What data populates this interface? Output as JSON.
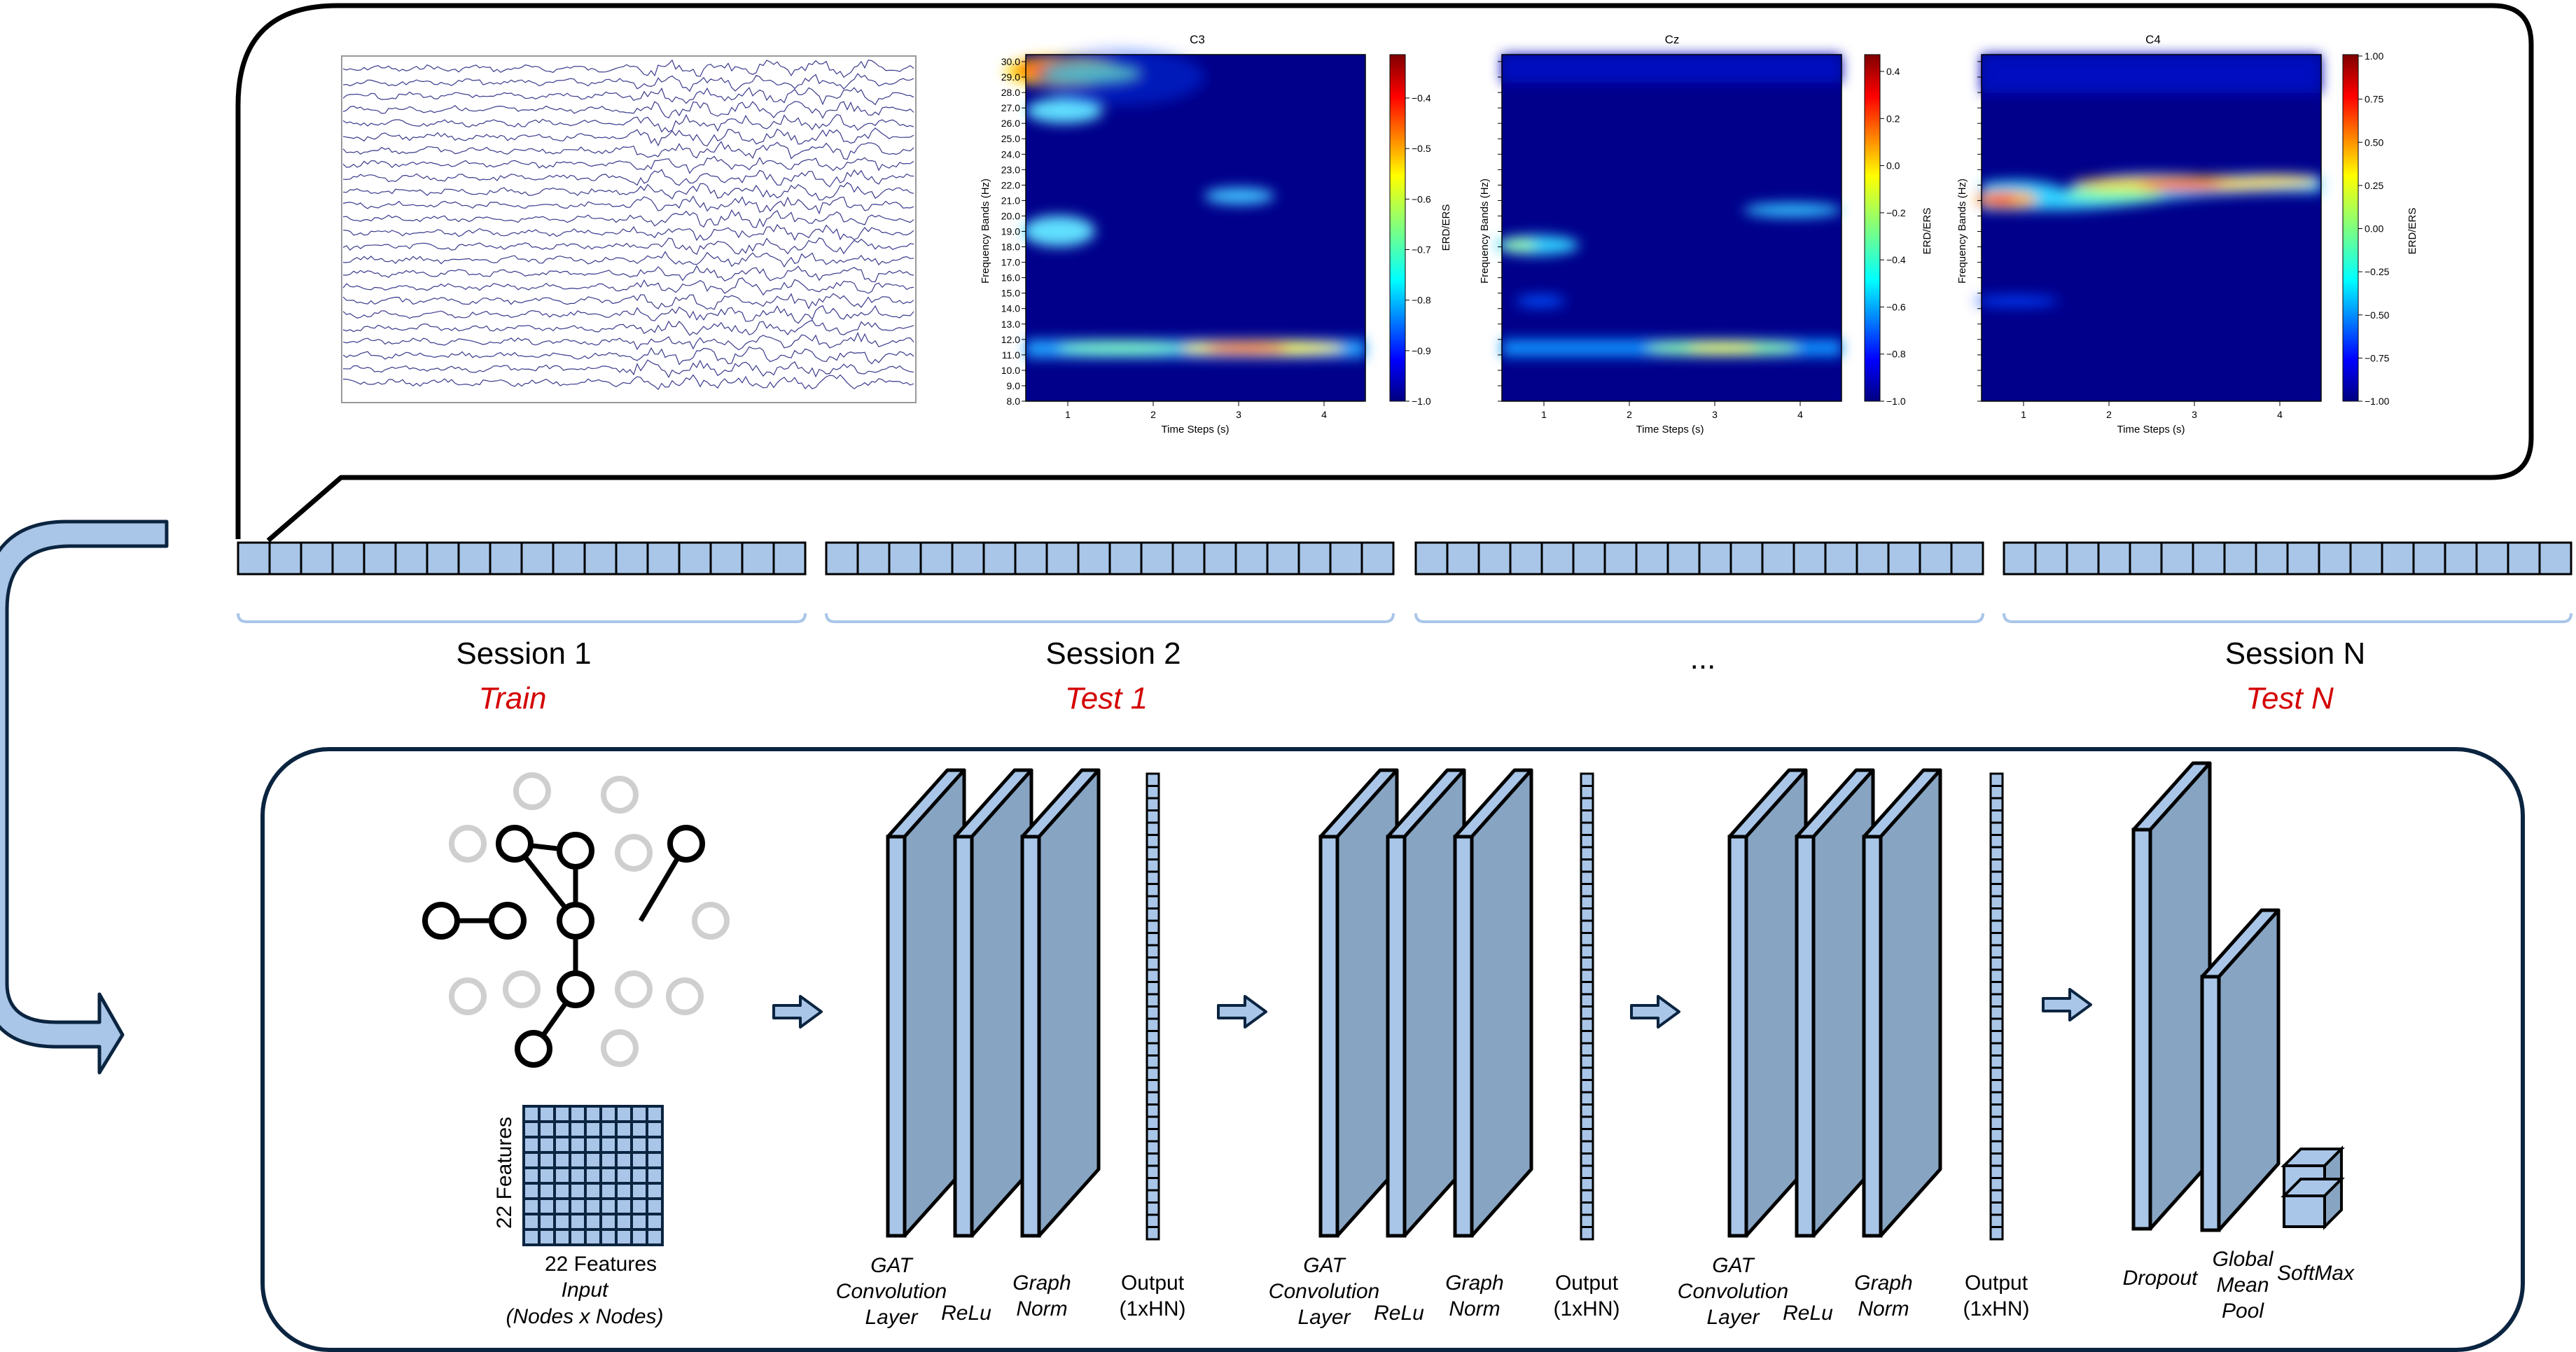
{
  "sessions": [
    {
      "name": "Session 1",
      "role": "Train"
    },
    {
      "name": "Session 2",
      "role": "Test 1"
    },
    {
      "name": "...",
      "role": ""
    },
    {
      "name": "Session N",
      "role": "Test N"
    }
  ],
  "heatmaps": [
    {
      "title": "C3",
      "cbar_ticks": [
        "−0.4",
        "−0.5",
        "−0.6",
        "−0.7",
        "−0.8",
        "−0.9",
        "−1.0"
      ],
      "cbar_label": "ERD/ERS"
    },
    {
      "title": "Cz",
      "cbar_ticks": [
        "0.4",
        "0.2",
        "0.0",
        "−0.2",
        "−0.4",
        "−0.6",
        "−0.8",
        "−1.0"
      ],
      "cbar_label": "ERD/ERS"
    },
    {
      "title": "C4",
      "cbar_ticks": [
        "1.00",
        "0.75",
        "0.50",
        "0.25",
        "0.00",
        "−0.25",
        "−0.50",
        "−0.75",
        "−1.00"
      ],
      "cbar_label": "ERD/ERS"
    }
  ],
  "heatmap_axes": {
    "ylabel": "Frequency Bands (Hz)",
    "xlabel": "Time Steps (s)",
    "yticks": [
      "30.0",
      "29.0",
      "28.0",
      "27.0",
      "26.0",
      "25.0",
      "24.0",
      "23.0",
      "22.0",
      "21.0",
      "20.0",
      "19.0",
      "18.0",
      "17.0",
      "16.0",
      "15.0",
      "14.0",
      "13.0",
      "12.0",
      "11.0",
      "10.0",
      "9.0",
      "8.0"
    ],
    "xticks": [
      "1",
      "2",
      "3",
      "4"
    ]
  },
  "input": {
    "features_side": "22 Features",
    "features_bottom": "22 Features",
    "caption_1": "Input",
    "caption_2": "(Nodes x Nodes)"
  },
  "blocks": [
    {
      "gat": [
        "GAT",
        "Convolution",
        "Layer"
      ],
      "relu": "ReLu",
      "norm": [
        "Graph",
        "Norm"
      ],
      "output": [
        "Output",
        "(1xHN)"
      ]
    },
    {
      "gat": [
        "GAT",
        "Convolution",
        "Layer"
      ],
      "relu": "ReLu",
      "norm": [
        "Graph",
        "Norm"
      ],
      "output": [
        "Output",
        "(1xHN)"
      ]
    },
    {
      "gat": [
        "GAT",
        "Convolution",
        "Layer"
      ],
      "relu": "ReLu",
      "norm": [
        "Graph",
        "Norm"
      ],
      "output": [
        "Output",
        "(1xHN)"
      ]
    }
  ],
  "final": {
    "dropout": "Dropout",
    "pool": [
      "Global",
      "Mean",
      "Pool"
    ],
    "softmax": "SoftMax"
  },
  "colors": {
    "block_fill": "#a9c6e8",
    "block_face": "#87a4c2",
    "arrow_fill": "#a9c6e8",
    "session_label_red": "#d40000",
    "bracket": "#a9c6e8"
  }
}
